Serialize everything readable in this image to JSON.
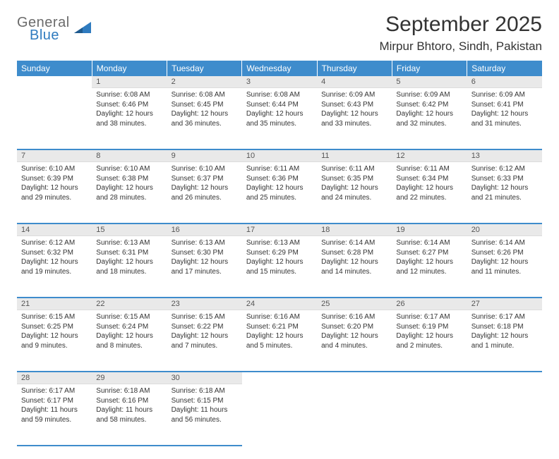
{
  "logo": {
    "general": "General",
    "blue": "Blue"
  },
  "header": {
    "month_title": "September 2025",
    "location": "Mirpur Bhtoro, Sindh, Pakistan"
  },
  "colors": {
    "header_bg": "#3e8ccc",
    "header_text": "#ffffff",
    "daynum_bg": "#e9e9e9",
    "divider": "#3e8ccc",
    "logo_gray": "#6b6b6b",
    "logo_blue": "#2f7bbf"
  },
  "weekdays": [
    "Sunday",
    "Monday",
    "Tuesday",
    "Wednesday",
    "Thursday",
    "Friday",
    "Saturday"
  ],
  "weeks": [
    [
      null,
      {
        "n": "1",
        "sunrise": "Sunrise: 6:08 AM",
        "sunset": "Sunset: 6:46 PM",
        "dl1": "Daylight: 12 hours",
        "dl2": "and 38 minutes."
      },
      {
        "n": "2",
        "sunrise": "Sunrise: 6:08 AM",
        "sunset": "Sunset: 6:45 PM",
        "dl1": "Daylight: 12 hours",
        "dl2": "and 36 minutes."
      },
      {
        "n": "3",
        "sunrise": "Sunrise: 6:08 AM",
        "sunset": "Sunset: 6:44 PM",
        "dl1": "Daylight: 12 hours",
        "dl2": "and 35 minutes."
      },
      {
        "n": "4",
        "sunrise": "Sunrise: 6:09 AM",
        "sunset": "Sunset: 6:43 PM",
        "dl1": "Daylight: 12 hours",
        "dl2": "and 33 minutes."
      },
      {
        "n": "5",
        "sunrise": "Sunrise: 6:09 AM",
        "sunset": "Sunset: 6:42 PM",
        "dl1": "Daylight: 12 hours",
        "dl2": "and 32 minutes."
      },
      {
        "n": "6",
        "sunrise": "Sunrise: 6:09 AM",
        "sunset": "Sunset: 6:41 PM",
        "dl1": "Daylight: 12 hours",
        "dl2": "and 31 minutes."
      }
    ],
    [
      {
        "n": "7",
        "sunrise": "Sunrise: 6:10 AM",
        "sunset": "Sunset: 6:39 PM",
        "dl1": "Daylight: 12 hours",
        "dl2": "and 29 minutes."
      },
      {
        "n": "8",
        "sunrise": "Sunrise: 6:10 AM",
        "sunset": "Sunset: 6:38 PM",
        "dl1": "Daylight: 12 hours",
        "dl2": "and 28 minutes."
      },
      {
        "n": "9",
        "sunrise": "Sunrise: 6:10 AM",
        "sunset": "Sunset: 6:37 PM",
        "dl1": "Daylight: 12 hours",
        "dl2": "and 26 minutes."
      },
      {
        "n": "10",
        "sunrise": "Sunrise: 6:11 AM",
        "sunset": "Sunset: 6:36 PM",
        "dl1": "Daylight: 12 hours",
        "dl2": "and 25 minutes."
      },
      {
        "n": "11",
        "sunrise": "Sunrise: 6:11 AM",
        "sunset": "Sunset: 6:35 PM",
        "dl1": "Daylight: 12 hours",
        "dl2": "and 24 minutes."
      },
      {
        "n": "12",
        "sunrise": "Sunrise: 6:11 AM",
        "sunset": "Sunset: 6:34 PM",
        "dl1": "Daylight: 12 hours",
        "dl2": "and 22 minutes."
      },
      {
        "n": "13",
        "sunrise": "Sunrise: 6:12 AM",
        "sunset": "Sunset: 6:33 PM",
        "dl1": "Daylight: 12 hours",
        "dl2": "and 21 minutes."
      }
    ],
    [
      {
        "n": "14",
        "sunrise": "Sunrise: 6:12 AM",
        "sunset": "Sunset: 6:32 PM",
        "dl1": "Daylight: 12 hours",
        "dl2": "and 19 minutes."
      },
      {
        "n": "15",
        "sunrise": "Sunrise: 6:13 AM",
        "sunset": "Sunset: 6:31 PM",
        "dl1": "Daylight: 12 hours",
        "dl2": "and 18 minutes."
      },
      {
        "n": "16",
        "sunrise": "Sunrise: 6:13 AM",
        "sunset": "Sunset: 6:30 PM",
        "dl1": "Daylight: 12 hours",
        "dl2": "and 17 minutes."
      },
      {
        "n": "17",
        "sunrise": "Sunrise: 6:13 AM",
        "sunset": "Sunset: 6:29 PM",
        "dl1": "Daylight: 12 hours",
        "dl2": "and 15 minutes."
      },
      {
        "n": "18",
        "sunrise": "Sunrise: 6:14 AM",
        "sunset": "Sunset: 6:28 PM",
        "dl1": "Daylight: 12 hours",
        "dl2": "and 14 minutes."
      },
      {
        "n": "19",
        "sunrise": "Sunrise: 6:14 AM",
        "sunset": "Sunset: 6:27 PM",
        "dl1": "Daylight: 12 hours",
        "dl2": "and 12 minutes."
      },
      {
        "n": "20",
        "sunrise": "Sunrise: 6:14 AM",
        "sunset": "Sunset: 6:26 PM",
        "dl1": "Daylight: 12 hours",
        "dl2": "and 11 minutes."
      }
    ],
    [
      {
        "n": "21",
        "sunrise": "Sunrise: 6:15 AM",
        "sunset": "Sunset: 6:25 PM",
        "dl1": "Daylight: 12 hours",
        "dl2": "and 9 minutes."
      },
      {
        "n": "22",
        "sunrise": "Sunrise: 6:15 AM",
        "sunset": "Sunset: 6:24 PM",
        "dl1": "Daylight: 12 hours",
        "dl2": "and 8 minutes."
      },
      {
        "n": "23",
        "sunrise": "Sunrise: 6:15 AM",
        "sunset": "Sunset: 6:22 PM",
        "dl1": "Daylight: 12 hours",
        "dl2": "and 7 minutes."
      },
      {
        "n": "24",
        "sunrise": "Sunrise: 6:16 AM",
        "sunset": "Sunset: 6:21 PM",
        "dl1": "Daylight: 12 hours",
        "dl2": "and 5 minutes."
      },
      {
        "n": "25",
        "sunrise": "Sunrise: 6:16 AM",
        "sunset": "Sunset: 6:20 PM",
        "dl1": "Daylight: 12 hours",
        "dl2": "and 4 minutes."
      },
      {
        "n": "26",
        "sunrise": "Sunrise: 6:17 AM",
        "sunset": "Sunset: 6:19 PM",
        "dl1": "Daylight: 12 hours",
        "dl2": "and 2 minutes."
      },
      {
        "n": "27",
        "sunrise": "Sunrise: 6:17 AM",
        "sunset": "Sunset: 6:18 PM",
        "dl1": "Daylight: 12 hours",
        "dl2": "and 1 minute."
      }
    ],
    [
      {
        "n": "28",
        "sunrise": "Sunrise: 6:17 AM",
        "sunset": "Sunset: 6:17 PM",
        "dl1": "Daylight: 11 hours",
        "dl2": "and 59 minutes."
      },
      {
        "n": "29",
        "sunrise": "Sunrise: 6:18 AM",
        "sunset": "Sunset: 6:16 PM",
        "dl1": "Daylight: 11 hours",
        "dl2": "and 58 minutes."
      },
      {
        "n": "30",
        "sunrise": "Sunrise: 6:18 AM",
        "sunset": "Sunset: 6:15 PM",
        "dl1": "Daylight: 11 hours",
        "dl2": "and 56 minutes."
      },
      null,
      null,
      null,
      null
    ]
  ]
}
